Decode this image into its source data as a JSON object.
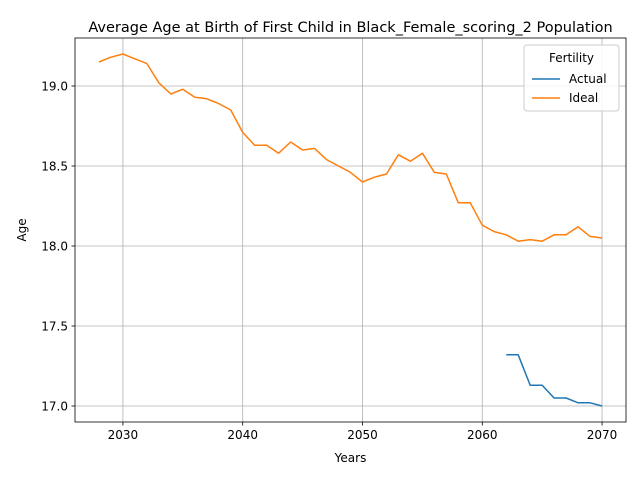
{
  "chart_data": {
    "type": "line",
    "title": "Average Age at Birth of First Child in Black_Female_scoring_2 Population",
    "xlabel": "Years",
    "ylabel": "Age",
    "xlim": [
      2026,
      2072
    ],
    "ylim": [
      16.9,
      19.3
    ],
    "x_ticks": [
      2030,
      2040,
      2050,
      2060,
      2070
    ],
    "y_ticks": [
      17.0,
      17.5,
      18.0,
      18.5,
      19.0
    ],
    "grid": true,
    "legend": {
      "title": "Fertility",
      "position": "top-right"
    },
    "series": [
      {
        "name": "Actual",
        "color": "#1f77b4",
        "x": [
          2062,
          2063,
          2064,
          2065,
          2066,
          2067,
          2068,
          2069,
          2070
        ],
        "values": [
          17.32,
          17.32,
          17.13,
          17.13,
          17.05,
          17.05,
          17.02,
          17.02,
          17.0
        ]
      },
      {
        "name": "Ideal",
        "color": "#ff7f0e",
        "x": [
          2028,
          2029,
          2030,
          2031,
          2032,
          2033,
          2034,
          2035,
          2036,
          2037,
          2038,
          2039,
          2040,
          2041,
          2042,
          2043,
          2044,
          2045,
          2046,
          2047,
          2048,
          2049,
          2050,
          2051,
          2052,
          2053,
          2054,
          2055,
          2056,
          2057,
          2058,
          2059,
          2060,
          2061,
          2062,
          2063,
          2064,
          2065,
          2066,
          2067,
          2068,
          2069,
          2070
        ],
        "values": [
          19.15,
          19.18,
          19.2,
          19.17,
          19.14,
          19.02,
          18.95,
          18.98,
          18.93,
          18.92,
          18.89,
          18.85,
          18.71,
          18.63,
          18.63,
          18.58,
          18.65,
          18.6,
          18.61,
          18.54,
          18.5,
          18.46,
          18.4,
          18.43,
          18.45,
          18.57,
          18.53,
          18.58,
          18.46,
          18.45,
          18.27,
          18.27,
          18.13,
          18.09,
          18.07,
          18.03,
          18.04,
          18.03,
          18.07,
          18.07,
          18.12,
          18.06,
          18.05
        ]
      }
    ]
  }
}
